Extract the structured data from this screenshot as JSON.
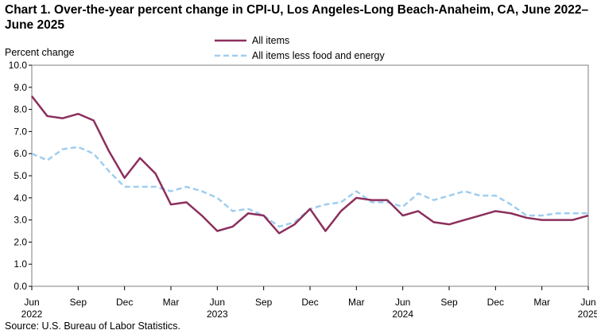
{
  "title": "Chart 1. Over-the-year percent change in CPI-U, Los Angeles-Long  Beach-Anaheim,  CA, June 2022–June 2025",
  "source": "Source: U.S. Bureau  of Labor Statistics.",
  "colors": {
    "all_items": "#8b2f5c",
    "core": "#9fcdf0",
    "axis": "#000000",
    "frame": "#7f7f7f"
  },
  "chart_data": {
    "type": "line",
    "title": "Chart 1. Over-the-year percent change in CPI-U, Los Angeles-Long Beach-Anaheim, CA, June 2022–June 2025",
    "ylabel": "Percent change",
    "xlabel": "",
    "ylim": [
      0,
      10
    ],
    "yticks": [
      "0.0",
      "1.0",
      "2.0",
      "3.0",
      "4.0",
      "5.0",
      "6.0",
      "7.0",
      "8.0",
      "9.0",
      "10.0"
    ],
    "x_tick_labels": [
      {
        "index": 0,
        "month": "Jun",
        "year": "2022"
      },
      {
        "index": 3,
        "month": "Sep",
        "year": ""
      },
      {
        "index": 6,
        "month": "Dec",
        "year": ""
      },
      {
        "index": 9,
        "month": "Mar",
        "year": ""
      },
      {
        "index": 12,
        "month": "Jun",
        "year": "2023"
      },
      {
        "index": 15,
        "month": "Sep",
        "year": ""
      },
      {
        "index": 18,
        "month": "Dec",
        "year": ""
      },
      {
        "index": 21,
        "month": "Mar",
        "year": ""
      },
      {
        "index": 24,
        "month": "Jun",
        "year": "2024"
      },
      {
        "index": 27,
        "month": "Sep",
        "year": ""
      },
      {
        "index": 30,
        "month": "Dec",
        "year": ""
      },
      {
        "index": 33,
        "month": "Mar",
        "year": ""
      },
      {
        "index": 36,
        "month": "Jun",
        "year": "2025"
      }
    ],
    "n_points": 37,
    "legend_position": "top-center",
    "series": [
      {
        "name": "All items",
        "style": "solid",
        "values": [
          8.6,
          7.7,
          7.6,
          7.8,
          7.5,
          6.1,
          4.9,
          5.8,
          5.1,
          3.7,
          3.8,
          3.2,
          2.5,
          2.7,
          3.3,
          3.2,
          2.4,
          2.8,
          3.5,
          2.5,
          3.4,
          4.0,
          3.9,
          3.9,
          3.2,
          3.4,
          2.9,
          2.8,
          3.0,
          3.2,
          3.4,
          3.3,
          3.1,
          3.0,
          3.0,
          3.0,
          3.2
        ]
      },
      {
        "name": "All items less food and energy",
        "style": "dashed",
        "values": [
          6.0,
          5.7,
          6.2,
          6.3,
          6.0,
          5.2,
          4.5,
          4.5,
          4.5,
          4.3,
          4.5,
          4.3,
          4.0,
          3.4,
          3.5,
          3.2,
          2.7,
          2.9,
          3.5,
          3.7,
          3.8,
          4.3,
          3.8,
          3.8,
          3.6,
          4.2,
          3.9,
          4.1,
          4.3,
          4.1,
          4.1,
          3.7,
          3.2,
          3.2,
          3.3,
          3.3,
          3.3
        ]
      }
    ]
  }
}
